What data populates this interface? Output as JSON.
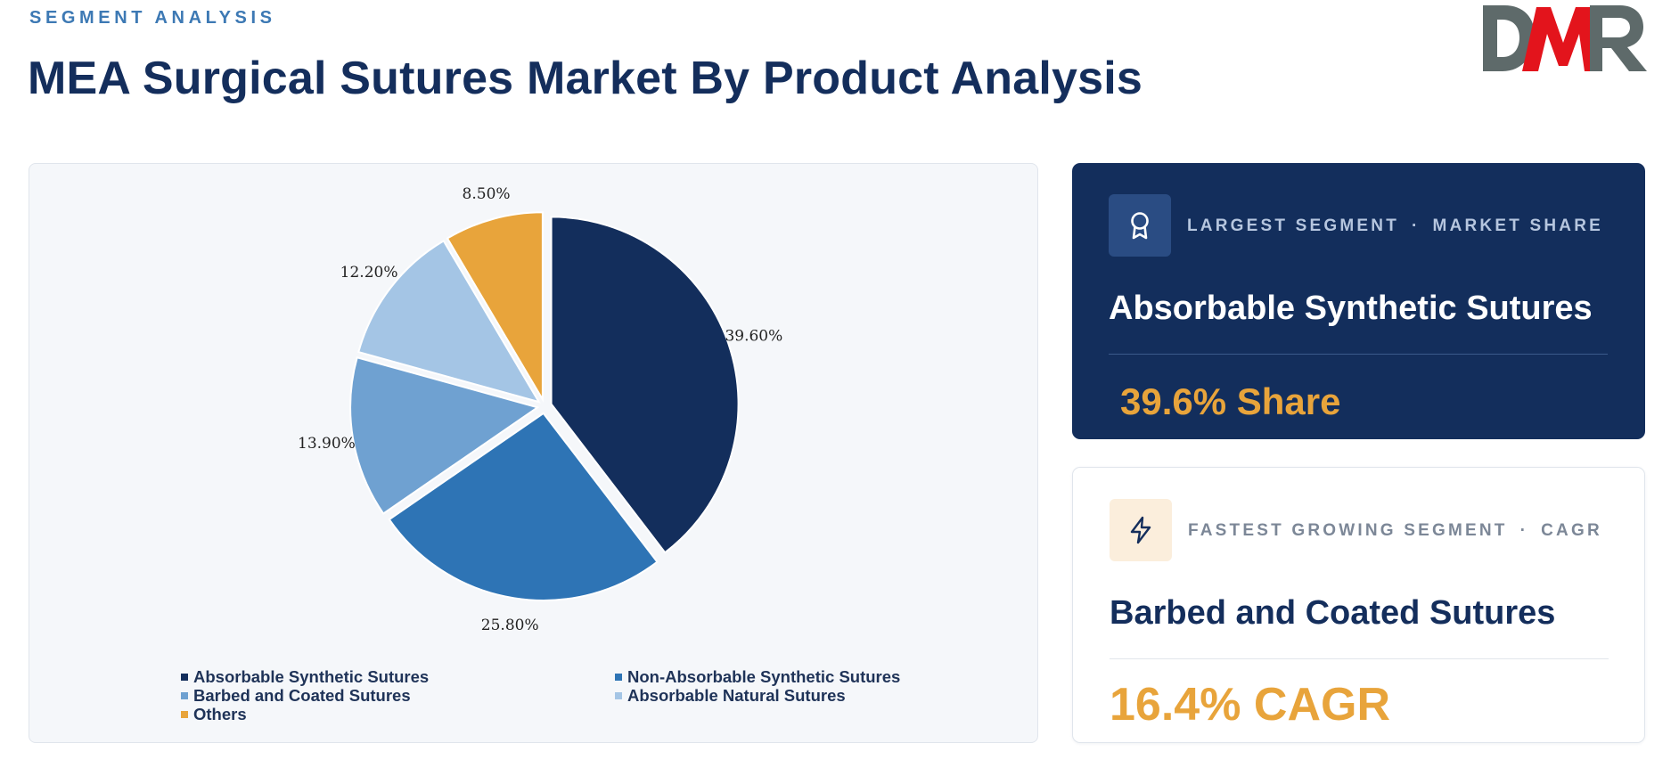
{
  "header": {
    "eyebrow": "SEGMENT ANALYSIS",
    "title": "MEA Surgical Sutures Market By Product Analysis",
    "logo_text": "DMR"
  },
  "colors": {
    "navy": "#132e5c",
    "accent_orange": "#e8a43b",
    "logo_grey": "#5e6a6a",
    "logo_red": "#e3141c"
  },
  "chart_data": {
    "type": "pie",
    "title": "",
    "categories": [
      "Absorbable Synthetic Sutures",
      "Non-Absorbable Synthetic Sutures",
      "Barbed and Coated Sutures",
      "Absorbable Natural Sutures",
      "Others"
    ],
    "values": [
      39.6,
      25.8,
      13.9,
      12.2,
      8.5
    ],
    "value_labels": [
      "39.60%",
      "25.80%",
      "13.90%",
      "12.20%",
      "8.50%"
    ],
    "colors": [
      "#132e5c",
      "#2e74b5",
      "#6fa1d1",
      "#a4c5e5",
      "#e8a43b"
    ],
    "legend_placement": "bottom"
  },
  "largest_segment": {
    "icon": "award-ribbon-icon",
    "label_left": "LARGEST SEGMENT",
    "separator": "·",
    "label_right": "MARKET SHARE",
    "name": "Absorbable Synthetic Sutures",
    "metric": "39.6% Share"
  },
  "fastest_segment": {
    "icon": "lightning-bolt-icon",
    "label_left": "FASTEST GROWING SEGMENT",
    "separator": "·",
    "label_right": "CAGR",
    "name": "Barbed and Coated Sutures",
    "metric": "16.4% CAGR"
  }
}
